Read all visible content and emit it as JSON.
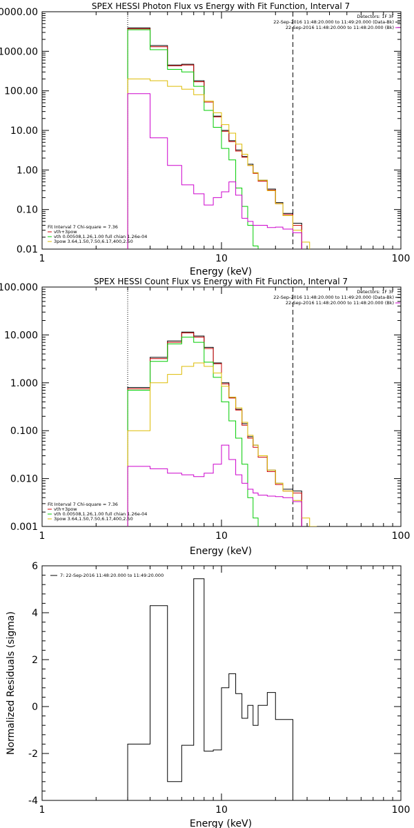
{
  "page": {
    "width": 600,
    "height": 1200
  },
  "chart_data": [
    {
      "type": "line",
      "title": "SPEX HESSI Photon Flux vs Energy with Fit Function, Interval 7",
      "xlabel": "Energy (keV)",
      "ylabel": "",
      "xscale": "log",
      "yscale": "log",
      "xlim": [
        1,
        100
      ],
      "ylim": [
        0.01,
        10000
      ],
      "x_ticks": [
        1,
        10,
        100
      ],
      "x_tick_labels": [
        "1",
        "10",
        "100"
      ],
      "y_ticks": [
        0.01,
        0.1,
        1,
        10,
        100,
        1000,
        10000
      ],
      "y_tick_labels": [
        "0.01",
        "0.10",
        "1.00",
        "10.00",
        "100.00",
        "1000.00",
        "10000.00"
      ],
      "vlines": [
        {
          "x": 3,
          "style": "dotted"
        },
        {
          "x": 25,
          "style": "dashed"
        }
      ],
      "info_lines": [
        "Detectors: 1F 3F",
        "22-Sep-2016 11:48:20.000 to 11:49:20.000 (Data-Bk)",
        "22-Sep-2016 11:48:20.000 to 11:48:20.000 (Bk)"
      ],
      "fit_header": "Fit Interval  7    Chi-square = 7.36",
      "fit_legend": [
        {
          "label": "vth+3pow",
          "color": "#cc0000"
        },
        {
          "label": "vth 0.00508,1.26,1.00  full chian 1.26e-04",
          "color": "#00cc00"
        },
        {
          "label": "3pow 3.64,1.50,7.50,6.17,400,2.50",
          "color": "#ddbb00"
        }
      ],
      "edges": [
        3,
        4,
        5,
        6,
        7,
        8,
        9,
        10,
        11,
        12,
        13,
        14,
        15,
        16,
        18,
        20,
        22,
        25,
        28,
        31
      ],
      "series": [
        {
          "name": "black",
          "color": "#000000",
          "values": [
            3900,
            1400,
            450,
            470,
            180,
            55,
            23,
            10,
            5.5,
            3.2,
            2.2,
            1.4,
            0.85,
            0.55,
            0.33,
            0.15,
            0.08,
            0.045,
            null
          ]
        },
        {
          "name": "red",
          "color": "#cc0000",
          "values": [
            3700,
            1300,
            430,
            450,
            170,
            52,
            22,
            9.5,
            5.2,
            3.0,
            2.1,
            1.3,
            0.82,
            0.52,
            0.31,
            0.14,
            0.075,
            0.04,
            null
          ]
        },
        {
          "name": "green",
          "color": "#00cc00",
          "values": [
            3500,
            1100,
            350,
            300,
            130,
            32,
            12,
            3.5,
            1.8,
            0.35,
            0.12,
            0.04,
            0.012,
            null,
            null,
            null,
            null,
            null,
            null
          ]
        },
        {
          "name": "yellow",
          "color": "#ddbb00",
          "values": [
            200,
            180,
            130,
            110,
            80,
            55,
            28,
            14,
            8.5,
            4.5,
            2.5,
            1.3,
            0.85,
            0.55,
            0.3,
            0.14,
            0.07,
            0.03,
            0.015
          ]
        },
        {
          "name": "magenta",
          "color": "#cc00cc",
          "values": [
            85,
            6.5,
            1.3,
            0.42,
            0.25,
            0.13,
            0.2,
            0.28,
            0.5,
            0.23,
            0.06,
            0.05,
            0.04,
            0.04,
            0.035,
            0.036,
            0.032,
            0.026,
            null
          ]
        }
      ]
    },
    {
      "type": "line",
      "title": "SPEX HESSI Count Flux vs Energy with Fit Function, Interval 7",
      "xlabel": "Energy (keV)",
      "ylabel": "",
      "xscale": "log",
      "yscale": "log",
      "xlim": [
        1,
        100
      ],
      "ylim": [
        0.001,
        100
      ],
      "x_ticks": [
        1,
        10,
        100
      ],
      "x_tick_labels": [
        "1",
        "10",
        "100"
      ],
      "y_ticks": [
        0.001,
        0.01,
        0.1,
        1,
        10,
        100
      ],
      "y_tick_labels": [
        "0.001",
        "0.010",
        "0.100",
        "1.000",
        "10.000",
        "100.000"
      ],
      "vlines": [
        {
          "x": 3,
          "style": "dotted"
        },
        {
          "x": 25,
          "style": "dashed"
        }
      ],
      "info_lines": [
        "Detectors: 1F 3F",
        "22-Sep-2016 11:48:20.000 to 11:49:20.000 (Data-Bk)",
        "22-Sep-2016 11:48:20.000 to 11:48:20.000 (Bk)"
      ],
      "fit_header": "Fit Interval  7    Chi-square = 7.36",
      "fit_legend": [
        {
          "label": "vth+3pow",
          "color": "#cc0000"
        },
        {
          "label": "vth 0.00508,1.26,1.00  full chian 1.26e-04",
          "color": "#00cc00"
        },
        {
          "label": "3pow 3.64,1.50,7.50,6.17,400,2.50",
          "color": "#ddbb00"
        }
      ],
      "edges": [
        3,
        4,
        5,
        6,
        7,
        8,
        9,
        10,
        11,
        12,
        13,
        14,
        15,
        16,
        18,
        20,
        22,
        25,
        28,
        31,
        34
      ],
      "series": [
        {
          "name": "black",
          "color": "#000000",
          "values": [
            0.8,
            3.4,
            7.5,
            11.5,
            9.5,
            5.5,
            2.6,
            1.0,
            0.5,
            0.28,
            0.14,
            0.075,
            0.05,
            0.03,
            0.015,
            0.008,
            0.006,
            0.0055,
            null,
            null
          ]
        },
        {
          "name": "red",
          "color": "#cc0000",
          "values": [
            0.75,
            3.2,
            7.0,
            11.0,
            9.0,
            5.2,
            2.5,
            0.95,
            0.48,
            0.27,
            0.13,
            0.07,
            0.045,
            0.028,
            0.014,
            0.0075,
            0.0055,
            0.005,
            null,
            null
          ]
        },
        {
          "name": "green",
          "color": "#00cc00",
          "values": [
            0.7,
            2.8,
            6.5,
            9.0,
            7.0,
            2.7,
            1.3,
            0.4,
            0.16,
            0.07,
            0.02,
            0.004,
            0.0015,
            null,
            null,
            null,
            null,
            null,
            null,
            null
          ]
        },
        {
          "name": "yellow",
          "color": "#ddbb00",
          "values": [
            0.1,
            1.0,
            1.5,
            2.2,
            2.6,
            2.2,
            1.6,
            0.85,
            0.5,
            0.3,
            0.15,
            0.08,
            0.05,
            0.03,
            0.015,
            0.008,
            0.0055,
            0.0035,
            0.0015,
            0.001
          ]
        },
        {
          "name": "magenta",
          "color": "#cc00cc",
          "values": [
            0.018,
            0.016,
            0.013,
            0.012,
            0.011,
            0.013,
            0.02,
            0.05,
            0.025,
            0.012,
            0.008,
            0.006,
            0.005,
            0.0045,
            0.0043,
            0.0042,
            0.004,
            0.0033,
            null,
            null
          ]
        }
      ]
    },
    {
      "type": "line",
      "title": "",
      "xlabel": "Energy (keV)",
      "ylabel": "Normalized Residuals (sigma)",
      "xscale": "log",
      "yscale": "linear",
      "xlim": [
        1,
        100
      ],
      "ylim": [
        -4,
        6
      ],
      "x_ticks": [
        1,
        10,
        100
      ],
      "x_tick_labels": [
        "1",
        "10",
        "100"
      ],
      "y_ticks": [
        -4,
        -2,
        0,
        2,
        4,
        6
      ],
      "y_tick_labels": [
        "-4",
        "-2",
        "0",
        "2",
        "4",
        "6"
      ],
      "legend_label": "7: 22-Sep-2016 11:48:20.000 to 11:49:20.000",
      "edges": [
        3,
        4,
        5,
        6,
        7,
        8,
        9,
        10,
        11,
        12,
        13,
        14,
        15,
        16,
        18,
        20,
        22,
        25
      ],
      "series": [
        {
          "name": "residuals",
          "color": "#000000",
          "values": [
            -1.6,
            4.3,
            -3.2,
            -1.65,
            5.45,
            -1.9,
            -1.85,
            0.8,
            1.4,
            0.55,
            -0.5,
            0.05,
            -0.8,
            0.05,
            0.6,
            -0.55,
            -0.55
          ]
        }
      ],
      "bottom_to": -4
    }
  ]
}
